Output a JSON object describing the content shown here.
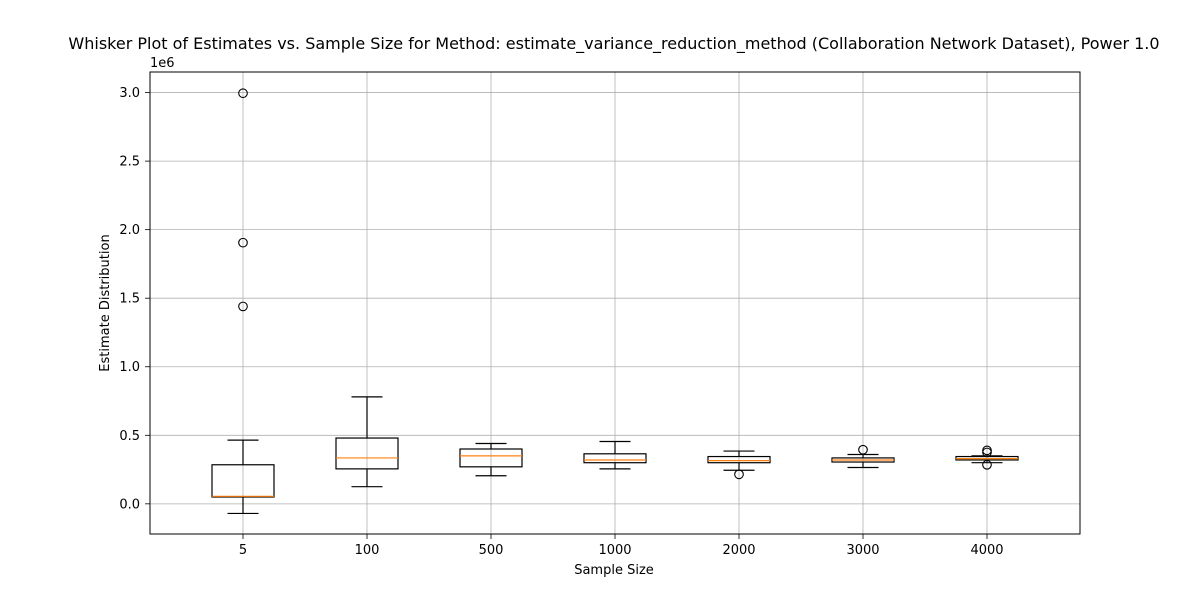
{
  "chart_data": {
    "type": "box",
    "title": "Whisker Plot of Estimates vs. Sample Size for Method: estimate_variance_reduction_method (Collaboration Network Dataset), Power 1.0",
    "xlabel": "Sample Size",
    "ylabel": "Estimate Distribution",
    "y_offset_text": "1e6",
    "ylim": [
      -0.22,
      3.15
    ],
    "yticks": [
      0.0,
      0.5,
      1.0,
      1.5,
      2.0,
      2.5,
      3.0
    ],
    "ytick_labels": [
      "0.0",
      "0.5",
      "1.0",
      "1.5",
      "2.0",
      "2.5",
      "3.0"
    ],
    "grid": true,
    "categories": [
      "5",
      "100",
      "500",
      "1000",
      "2000",
      "3000",
      "4000"
    ],
    "boxes": [
      {
        "category": "5",
        "whisker_low": -0.07,
        "q1": 0.05,
        "median": 0.055,
        "q3": 0.285,
        "whisker_high": 0.465,
        "outliers": [
          1.44,
          1.905,
          2.995
        ]
      },
      {
        "category": "100",
        "whisker_low": 0.125,
        "q1": 0.255,
        "median": 0.335,
        "q3": 0.48,
        "whisker_high": 0.78,
        "outliers": []
      },
      {
        "category": "500",
        "whisker_low": 0.205,
        "q1": 0.27,
        "median": 0.35,
        "q3": 0.4,
        "whisker_high": 0.44,
        "outliers": []
      },
      {
        "category": "1000",
        "whisker_low": 0.255,
        "q1": 0.3,
        "median": 0.32,
        "q3": 0.365,
        "whisker_high": 0.455,
        "outliers": []
      },
      {
        "category": "2000",
        "whisker_low": 0.245,
        "q1": 0.3,
        "median": 0.315,
        "q3": 0.345,
        "whisker_high": 0.385,
        "outliers": [
          0.215
        ]
      },
      {
        "category": "3000",
        "whisker_low": 0.265,
        "q1": 0.305,
        "median": 0.32,
        "q3": 0.335,
        "whisker_high": 0.36,
        "outliers": [
          0.395
        ]
      },
      {
        "category": "4000",
        "whisker_low": 0.3,
        "q1": 0.32,
        "median": 0.33,
        "q3": 0.345,
        "whisker_high": 0.35,
        "outliers": [
          0.285,
          0.375,
          0.39
        ]
      }
    ],
    "colors": {
      "box": "#000000",
      "median": "#ff7f0e",
      "grid": "#b0b0b0",
      "outlier_edge": "#000000"
    }
  }
}
